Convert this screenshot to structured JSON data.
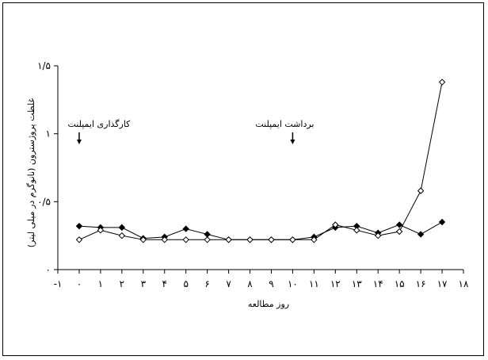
{
  "chart_data": {
    "type": "line",
    "title": "",
    "xlabel": "روز مطالعه",
    "ylabel": "غلظت پروژسترون (نانوگرم در میلی لیتر)",
    "xlim": [
      -1,
      18
    ],
    "ylim": [
      0,
      1.5
    ],
    "x_tick_labels": [
      "-۱",
      "۰",
      "۱",
      "۲",
      "۳",
      "۴",
      "۵",
      "۶",
      "۷",
      "۸",
      "۹",
      "۱۰",
      "۱۱",
      "۱۲",
      "۱۳",
      "۱۴",
      "۱۵",
      "۱۶",
      "۱۷",
      "۱۸"
    ],
    "x_tick_values": [
      -1,
      0,
      1,
      2,
      3,
      4,
      5,
      6,
      7,
      8,
      9,
      10,
      11,
      12,
      13,
      14,
      15,
      16,
      17,
      18
    ],
    "y_tick_labels": [
      "۰",
      "۰/۵",
      "۱",
      "۱/۵"
    ],
    "y_tick_values": [
      0,
      0.5,
      1,
      1.5
    ],
    "grid": false,
    "legend": "none",
    "series": [
      {
        "marker": "filled-diamond",
        "x": [
          0,
          1,
          2,
          3,
          4,
          5,
          6,
          7,
          8,
          9,
          10,
          11,
          12,
          13,
          14,
          15,
          16,
          17
        ],
        "y": [
          0.32,
          0.31,
          0.31,
          0.23,
          0.24,
          0.3,
          0.26,
          0.22,
          0.22,
          0.22,
          0.22,
          0.24,
          0.31,
          0.32,
          0.27,
          0.33,
          0.26,
          0.35
        ]
      },
      {
        "marker": "open-diamond",
        "x": [
          0,
          1,
          2,
          3,
          4,
          5,
          6,
          7,
          8,
          9,
          10,
          11,
          12,
          13,
          14,
          15,
          16,
          17
        ],
        "y": [
          0.22,
          0.29,
          0.25,
          0.22,
          0.22,
          0.22,
          0.22,
          0.22,
          0.22,
          0.22,
          0.22,
          0.22,
          0.33,
          0.29,
          0.25,
          0.28,
          0.58,
          1.38
        ]
      }
    ],
    "annotations": [
      {
        "text": "کارگذاری ایمپلنت",
        "x": 0
      },
      {
        "text": "برداشت ایمپلنت",
        "x": 10
      }
    ]
  }
}
